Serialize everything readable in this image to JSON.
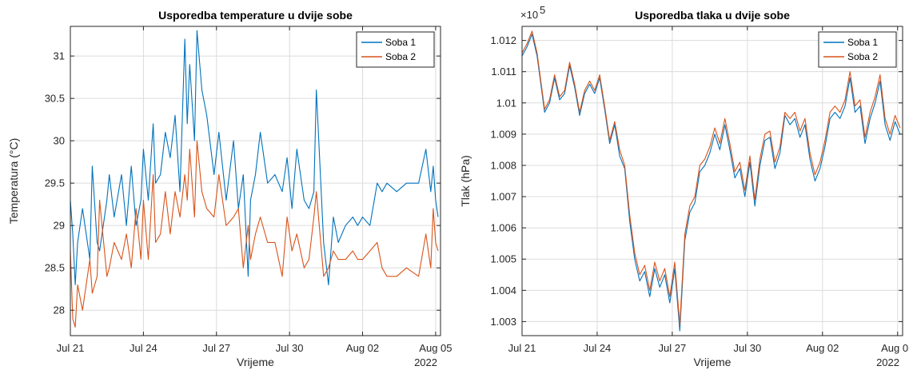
{
  "chart_data": [
    {
      "type": "line",
      "title": "Usporedba temperature u dvije sobe",
      "xlabel": "Vrijeme",
      "ylabel": "Temperatura (°C)",
      "year_label": "2022",
      "xlim": [
        0,
        15.2
      ],
      "ylim": [
        27.7,
        31.35
      ],
      "x_ticks": [
        {
          "value": 0,
          "label": "Jul 21"
        },
        {
          "value": 3,
          "label": "Jul 24"
        },
        {
          "value": 6,
          "label": "Jul 27"
        },
        {
          "value": 9,
          "label": "Jul 30"
        },
        {
          "value": 12,
          "label": "Aug 02"
        },
        {
          "value": 15,
          "label": "Aug 05"
        }
      ],
      "y_ticks": [
        {
          "value": 28,
          "label": "28"
        },
        {
          "value": 28.5,
          "label": "28.5"
        },
        {
          "value": 29,
          "label": "29"
        },
        {
          "value": 29.5,
          "label": "29.5"
        },
        {
          "value": 30,
          "label": "30"
        },
        {
          "value": 30.5,
          "label": "30.5"
        },
        {
          "value": 31,
          "label": "31"
        }
      ],
      "grid": true,
      "legend": "top-right",
      "series": [
        {
          "name": "Soba 1",
          "color": "#0072BD",
          "x": [
            0,
            0.1,
            0.2,
            0.3,
            0.5,
            0.8,
            0.9,
            1.1,
            1.2,
            1.5,
            1.6,
            1.8,
            2.1,
            2.3,
            2.5,
            2.7,
            2.9,
            3.0,
            3.2,
            3.4,
            3.5,
            3.7,
            3.9,
            4.1,
            4.3,
            4.5,
            4.7,
            4.8,
            4.9,
            5.1,
            5.2,
            5.4,
            5.6,
            5.9,
            6.1,
            6.4,
            6.7,
            6.9,
            7.1,
            7.3,
            7.4,
            7.6,
            7.8,
            8.1,
            8.4,
            8.7,
            8.9,
            9.1,
            9.3,
            9.6,
            9.8,
            10.0,
            10.1,
            10.4,
            10.6,
            10.8,
            11.0,
            11.3,
            11.6,
            11.8,
            12.0,
            12.3,
            12.6,
            12.8,
            13.0,
            13.4,
            13.8,
            14.3,
            14.6,
            14.8,
            14.9,
            15.0,
            15.1
          ],
          "values": [
            29.3,
            28.9,
            28.3,
            28.8,
            29.2,
            28.6,
            29.7,
            28.8,
            28.7,
            29.3,
            29.6,
            29.1,
            29.6,
            29.0,
            29.7,
            29.0,
            29.3,
            29.9,
            29.3,
            30.2,
            29.5,
            29.6,
            30.1,
            29.8,
            30.3,
            29.4,
            31.2,
            30.2,
            30.9,
            30.0,
            31.3,
            30.6,
            30.3,
            29.6,
            30.1,
            29.3,
            30.0,
            29.2,
            29.6,
            28.4,
            29.3,
            29.6,
            30.1,
            29.5,
            29.6,
            29.4,
            29.8,
            29.2,
            29.9,
            29.3,
            29.2,
            29.4,
            30.6,
            28.8,
            28.3,
            29.1,
            28.8,
            29.0,
            29.1,
            29.0,
            29.1,
            29.0,
            29.5,
            29.4,
            29.5,
            29.4,
            29.5,
            29.5,
            29.9,
            29.4,
            29.7,
            29.3,
            29.1
          ]
        },
        {
          "name": "Soba 2",
          "color": "#D95319",
          "x": [
            0,
            0.1,
            0.2,
            0.3,
            0.5,
            0.8,
            0.9,
            1.1,
            1.2,
            1.5,
            1.6,
            1.8,
            2.1,
            2.3,
            2.5,
            2.7,
            2.9,
            3.0,
            3.2,
            3.4,
            3.5,
            3.7,
            3.9,
            4.1,
            4.3,
            4.5,
            4.7,
            4.8,
            4.9,
            5.1,
            5.2,
            5.4,
            5.6,
            5.9,
            6.1,
            6.4,
            6.7,
            6.9,
            7.1,
            7.3,
            7.4,
            7.6,
            7.8,
            8.1,
            8.4,
            8.7,
            8.9,
            9.1,
            9.3,
            9.6,
            9.8,
            10.0,
            10.1,
            10.4,
            10.6,
            10.8,
            11.0,
            11.3,
            11.6,
            11.8,
            12.0,
            12.3,
            12.6,
            12.8,
            13.0,
            13.4,
            13.8,
            14.3,
            14.6,
            14.8,
            14.9,
            15.0,
            15.1
          ],
          "values": [
            28.7,
            27.9,
            27.8,
            28.3,
            28.0,
            28.6,
            28.2,
            28.4,
            29.3,
            28.4,
            28.5,
            28.8,
            28.6,
            28.9,
            28.5,
            29.2,
            28.6,
            29.3,
            28.6,
            29.6,
            28.8,
            28.9,
            29.4,
            28.9,
            29.4,
            29.1,
            29.6,
            29.3,
            29.9,
            29.1,
            30.0,
            29.4,
            29.2,
            29.1,
            29.6,
            29.0,
            29.1,
            29.2,
            28.5,
            29.0,
            28.6,
            28.9,
            29.1,
            28.8,
            28.8,
            28.4,
            29.1,
            28.7,
            28.9,
            28.5,
            28.6,
            29.1,
            29.4,
            28.4,
            28.5,
            28.7,
            28.6,
            28.6,
            28.7,
            28.6,
            28.6,
            28.7,
            28.8,
            28.5,
            28.4,
            28.4,
            28.5,
            28.4,
            28.9,
            28.5,
            29.2,
            28.8,
            28.7
          ]
        }
      ]
    },
    {
      "type": "line",
      "title": "Usporedba tlaka u dvije sobe",
      "xlabel": "Vrijeme",
      "ylabel": "Tlak (hPa)",
      "exponent_label": "×10",
      "exponent_power": "5",
      "year_label": "2022",
      "xlim": [
        0,
        15.2
      ],
      "ylim": [
        1.00255,
        1.01245
      ],
      "x_ticks": [
        {
          "value": 0,
          "label": "Jul 21"
        },
        {
          "value": 3,
          "label": "Jul 24"
        },
        {
          "value": 6,
          "label": "Jul 27"
        },
        {
          "value": 9,
          "label": "Jul 30"
        },
        {
          "value": 12,
          "label": "Aug 02"
        },
        {
          "value": 15,
          "label": "Aug 05"
        }
      ],
      "y_ticks": [
        {
          "value": 1.003,
          "label": "1.003"
        },
        {
          "value": 1.004,
          "label": "1.004"
        },
        {
          "value": 1.005,
          "label": "1.005"
        },
        {
          "value": 1.006,
          "label": "1.006"
        },
        {
          "value": 1.007,
          "label": "1.007"
        },
        {
          "value": 1.008,
          "label": "1.008"
        },
        {
          "value": 1.009,
          "label": "1.009"
        },
        {
          "value": 1.01,
          "label": "1.01"
        },
        {
          "value": 1.011,
          "label": "1.011"
        },
        {
          "value": 1.012,
          "label": "1.012"
        }
      ],
      "grid": true,
      "legend": "top-right",
      "series": [
        {
          "name": "Soba 1",
          "color": "#0072BD",
          "x": [
            0,
            0.2,
            0.4,
            0.6,
            0.9,
            1.1,
            1.3,
            1.5,
            1.7,
            1.9,
            2.1,
            2.3,
            2.5,
            2.7,
            2.9,
            3.1,
            3.3,
            3.5,
            3.7,
            3.9,
            4.1,
            4.3,
            4.5,
            4.7,
            4.9,
            5.1,
            5.3,
            5.5,
            5.7,
            5.9,
            6.1,
            6.3,
            6.5,
            6.7,
            6.9,
            7.1,
            7.3,
            7.5,
            7.7,
            7.9,
            8.1,
            8.3,
            8.5,
            8.7,
            8.9,
            9.1,
            9.3,
            9.5,
            9.7,
            9.9,
            10.1,
            10.3,
            10.5,
            10.7,
            10.9,
            11.1,
            11.3,
            11.5,
            11.7,
            11.9,
            12.1,
            12.3,
            12.5,
            12.7,
            12.9,
            13.1,
            13.3,
            13.5,
            13.7,
            13.9,
            14.1,
            14.3,
            14.5,
            14.7,
            14.9,
            15.1
          ],
          "values": [
            1.0115,
            1.0118,
            1.0122,
            1.0115,
            1.0097,
            1.01,
            1.0108,
            1.0101,
            1.0103,
            1.0112,
            1.0105,
            1.0096,
            1.0103,
            1.0106,
            1.0103,
            1.0108,
            1.0098,
            1.0087,
            1.0093,
            1.0083,
            1.0079,
            1.0062,
            1.005,
            1.0043,
            1.0046,
            1.0038,
            1.0047,
            1.0041,
            1.0045,
            1.0036,
            1.0047,
            1.0027,
            1.0056,
            1.0065,
            1.0068,
            1.0078,
            1.008,
            1.0084,
            1.009,
            1.0085,
            1.0093,
            1.0085,
            1.0076,
            1.0079,
            1.007,
            1.0081,
            1.0067,
            1.008,
            1.0088,
            1.0089,
            1.0079,
            1.0084,
            1.0096,
            1.0093,
            1.0095,
            1.0089,
            1.0093,
            1.0082,
            1.0075,
            1.0079,
            1.0086,
            1.0095,
            1.0097,
            1.0095,
            1.0099,
            1.0108,
            1.0097,
            1.0099,
            1.0087,
            1.0095,
            1.01,
            1.0107,
            1.0093,
            1.0088,
            1.0094,
            1.009
          ]
        },
        {
          "name": "Soba 2",
          "color": "#D95319",
          "x": [
            0,
            0.2,
            0.4,
            0.6,
            0.9,
            1.1,
            1.3,
            1.5,
            1.7,
            1.9,
            2.1,
            2.3,
            2.5,
            2.7,
            2.9,
            3.1,
            3.3,
            3.5,
            3.7,
            3.9,
            4.1,
            4.3,
            4.5,
            4.7,
            4.9,
            5.1,
            5.3,
            5.5,
            5.7,
            5.9,
            6.1,
            6.3,
            6.5,
            6.7,
            6.9,
            7.1,
            7.3,
            7.5,
            7.7,
            7.9,
            8.1,
            8.3,
            8.5,
            8.7,
            8.9,
            9.1,
            9.3,
            9.5,
            9.7,
            9.9,
            10.1,
            10.3,
            10.5,
            10.7,
            10.9,
            11.1,
            11.3,
            11.5,
            11.7,
            11.9,
            12.1,
            12.3,
            12.5,
            12.7,
            12.9,
            13.1,
            13.3,
            13.5,
            13.7,
            13.9,
            14.1,
            14.3,
            14.5,
            14.7,
            14.9,
            15.1
          ],
          "values": [
            1.0116,
            1.0119,
            1.0123,
            1.0116,
            1.0098,
            1.0101,
            1.0109,
            1.0102,
            1.0104,
            1.0113,
            1.0106,
            1.0097,
            1.0104,
            1.0107,
            1.0104,
            1.0109,
            1.0099,
            1.0088,
            1.0094,
            1.0085,
            1.008,
            1.0064,
            1.0052,
            1.0045,
            1.0048,
            1.004,
            1.0049,
            1.0043,
            1.0047,
            1.0038,
            1.0049,
            1.0029,
            1.0058,
            1.0067,
            1.007,
            1.008,
            1.0082,
            1.0086,
            1.0092,
            1.0087,
            1.0095,
            1.0087,
            1.0078,
            1.0081,
            1.0072,
            1.0083,
            1.0069,
            1.0082,
            1.009,
            1.0091,
            1.0081,
            1.0086,
            1.0097,
            1.0095,
            1.0097,
            1.0091,
            1.0095,
            1.0084,
            1.0077,
            1.0081,
            1.0088,
            1.0097,
            1.0099,
            1.0097,
            1.0101,
            1.011,
            1.0099,
            1.0101,
            1.0089,
            1.0097,
            1.0102,
            1.0109,
            1.0095,
            1.009,
            1.0096,
            1.0092
          ]
        }
      ]
    }
  ]
}
